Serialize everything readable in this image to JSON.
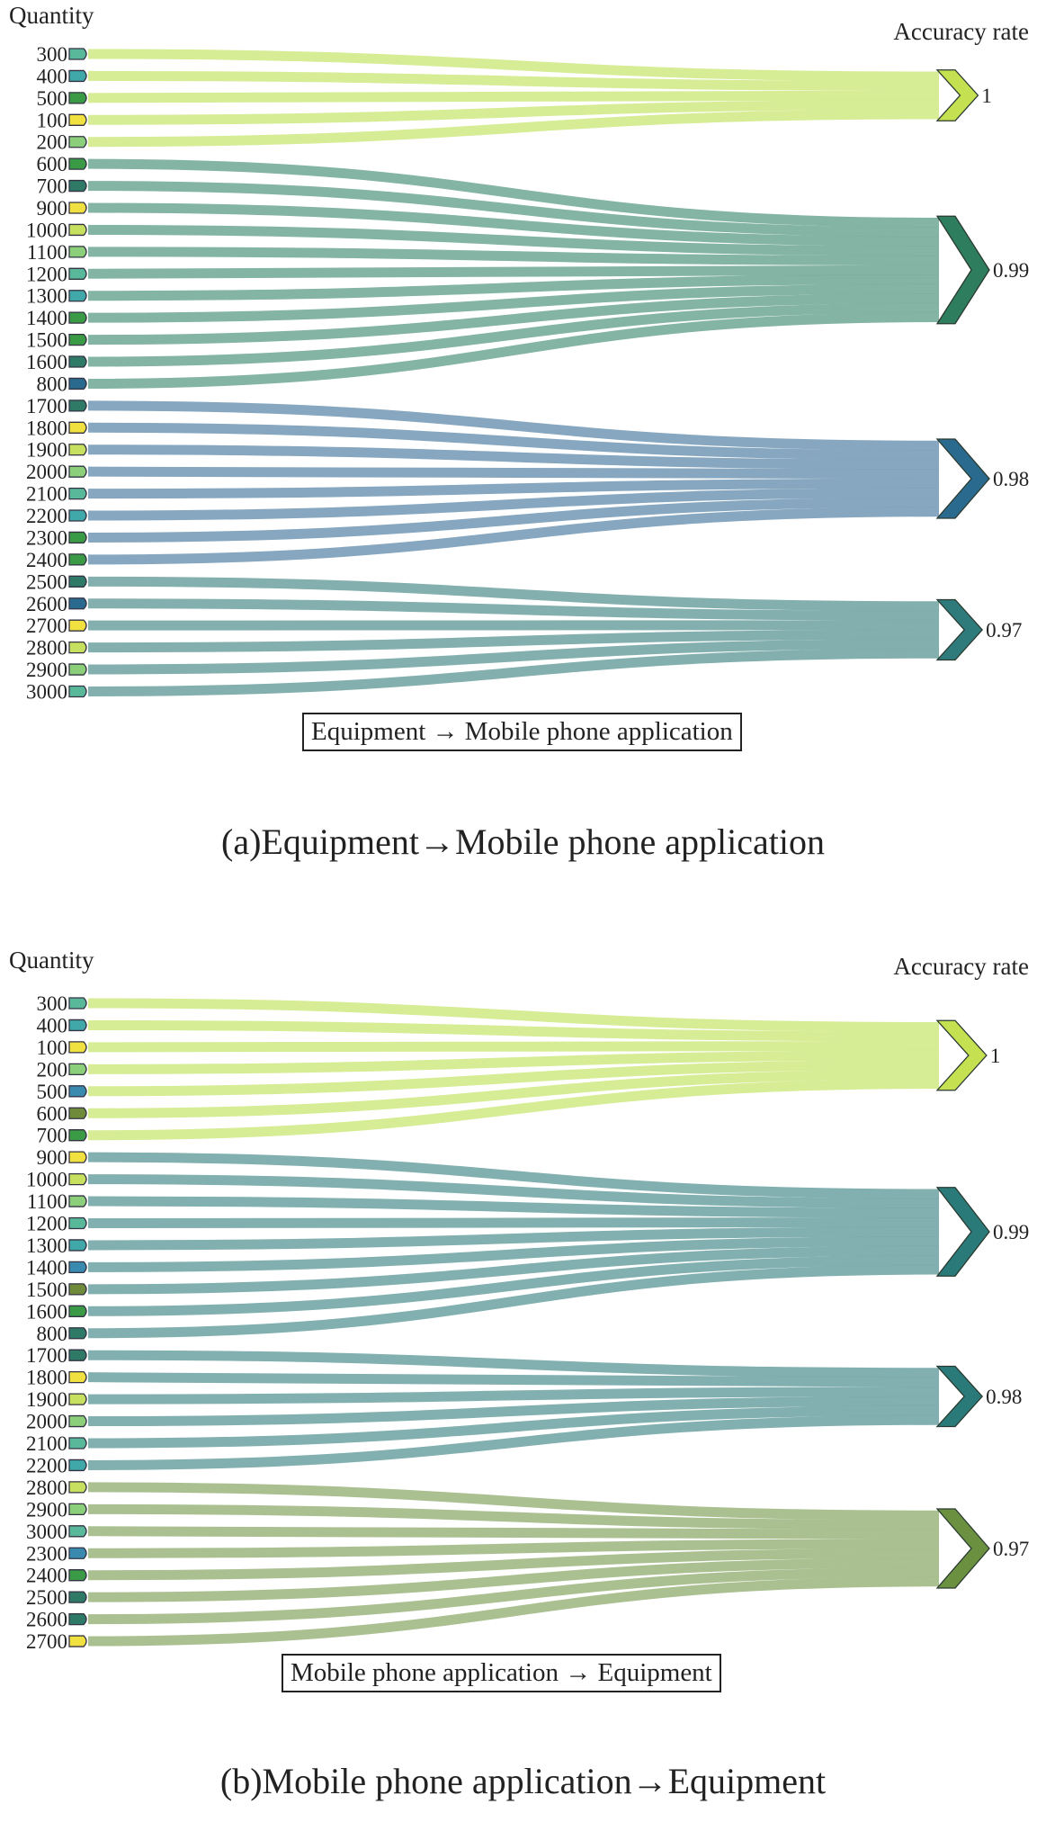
{
  "palette": {
    "Y": "#f0e040",
    "L": "#c8e060",
    "G": "#8ccf7a",
    "T": "#5ab89a",
    "C": "#40a8a8",
    "D": "#3a9a45",
    "E": "#2e7a66",
    "B": "#2a6a8e",
    "O": "#6e8a3a",
    "S": "#3a8ab0"
  },
  "chart_data": [
    {
      "type": "sankey",
      "source_title": "Quantity",
      "target_title": "Accuracy rate",
      "legend": "Equipment → Mobile phone application",
      "caption": "(a)Equipment→Mobile phone application",
      "targets": [
        {
          "label": "1",
          "link_color": "#d2ea8c",
          "node_color": "#c5e050"
        },
        {
          "label": "0.99",
          "link_color": "#7aae9b",
          "node_color": "#2e7d5e"
        },
        {
          "label": "0.98",
          "link_color": "#7c9fba",
          "node_color": "#2a6a8e"
        },
        {
          "label": "0.97",
          "link_color": "#7aa8a8",
          "node_color": "#2f7a7a"
        }
      ],
      "sources": [
        [
          "300",
          "T",
          0
        ],
        [
          "400",
          "C",
          0
        ],
        [
          "500",
          "D",
          0
        ],
        [
          "100",
          "Y",
          0
        ],
        [
          "200",
          "G",
          0
        ],
        [
          "600",
          "D",
          1
        ],
        [
          "700",
          "E",
          1
        ],
        [
          "900",
          "Y",
          1
        ],
        [
          "1000",
          "L",
          1
        ],
        [
          "1100",
          "G",
          1
        ],
        [
          "1200",
          "T",
          1
        ],
        [
          "1300",
          "C",
          1
        ],
        [
          "1400",
          "D",
          1
        ],
        [
          "1500",
          "D",
          1
        ],
        [
          "1600",
          "E",
          1
        ],
        [
          "800",
          "B",
          1
        ],
        [
          "1700",
          "E",
          2
        ],
        [
          "1800",
          "Y",
          2
        ],
        [
          "1900",
          "L",
          2
        ],
        [
          "2000",
          "G",
          2
        ],
        [
          "2100",
          "T",
          2
        ],
        [
          "2200",
          "C",
          2
        ],
        [
          "2300",
          "D",
          2
        ],
        [
          "2400",
          "D",
          2
        ],
        [
          "2500",
          "E",
          3
        ],
        [
          "2600",
          "B",
          3
        ],
        [
          "2700",
          "Y",
          3
        ],
        [
          "2800",
          "L",
          3
        ],
        [
          "2900",
          "G",
          3
        ],
        [
          "3000",
          "T",
          3
        ]
      ]
    },
    {
      "type": "sankey",
      "source_title": "Quantity",
      "target_title": "Accuracy rate",
      "legend": "Mobile phone application → Equipment",
      "caption": "(b)Mobile phone application→Equipment",
      "targets": [
        {
          "label": "1",
          "link_color": "#d2ea8c",
          "node_color": "#c5e050"
        },
        {
          "label": "0.99",
          "link_color": "#77a8a8",
          "node_color": "#2a7a7a"
        },
        {
          "label": "0.98",
          "link_color": "#77a8a8",
          "node_color": "#2a7a7a"
        },
        {
          "label": "0.97",
          "link_color": "#a4bb88",
          "node_color": "#6a9040"
        }
      ],
      "sources": [
        [
          "300",
          "T",
          0
        ],
        [
          "400",
          "C",
          0
        ],
        [
          "100",
          "Y",
          0
        ],
        [
          "200",
          "G",
          0
        ],
        [
          "500",
          "S",
          0
        ],
        [
          "600",
          "O",
          0
        ],
        [
          "700",
          "D",
          0
        ],
        [
          "900",
          "Y",
          1
        ],
        [
          "1000",
          "L",
          1
        ],
        [
          "1100",
          "G",
          1
        ],
        [
          "1200",
          "T",
          1
        ],
        [
          "1300",
          "C",
          1
        ],
        [
          "1400",
          "S",
          1
        ],
        [
          "1500",
          "O",
          1
        ],
        [
          "1600",
          "D",
          1
        ],
        [
          "800",
          "E",
          1
        ],
        [
          "1700",
          "E",
          2
        ],
        [
          "1800",
          "Y",
          2
        ],
        [
          "1900",
          "L",
          2
        ],
        [
          "2000",
          "G",
          2
        ],
        [
          "2100",
          "T",
          2
        ],
        [
          "2200",
          "C",
          2
        ],
        [
          "2800",
          "L",
          3
        ],
        [
          "2900",
          "G",
          3
        ],
        [
          "3000",
          "T",
          3
        ],
        [
          "2300",
          "S",
          3
        ],
        [
          "2400",
          "D",
          3
        ],
        [
          "2500",
          "E",
          3
        ],
        [
          "2600",
          "E",
          3
        ],
        [
          "2700",
          "Y",
          3
        ]
      ]
    }
  ]
}
